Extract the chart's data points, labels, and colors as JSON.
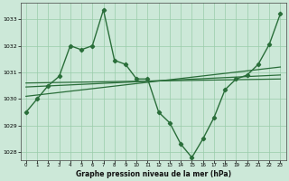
{
  "title": "Graphe pression niveau de la mer (hPa)",
  "background_color": "#cce8d8",
  "grid_color": "#99ccaa",
  "line_color": "#2a6e3a",
  "xlim": [
    -0.5,
    23.5
  ],
  "ylim": [
    1027.7,
    1033.6
  ],
  "yticks": [
    1028,
    1029,
    1030,
    1031,
    1032,
    1033
  ],
  "xticks": [
    0,
    1,
    2,
    3,
    4,
    5,
    6,
    7,
    8,
    9,
    10,
    11,
    12,
    13,
    14,
    15,
    16,
    17,
    18,
    19,
    20,
    21,
    22,
    23
  ],
  "main_series_x": [
    0,
    1,
    2,
    3,
    4,
    5,
    6,
    7,
    8,
    9,
    10,
    11,
    12,
    13,
    14,
    15,
    16,
    17,
    18,
    19,
    20,
    21,
    22,
    23
  ],
  "main_series_y": [
    1029.5,
    1030.0,
    1030.5,
    1030.85,
    1032.0,
    1031.85,
    1032.0,
    1033.35,
    1031.45,
    1031.3,
    1030.75,
    1030.75,
    1029.5,
    1029.1,
    1028.3,
    1027.8,
    1028.5,
    1029.3,
    1030.35,
    1030.75,
    1030.9,
    1031.3,
    1032.05,
    1033.2
  ],
  "trend1_x": [
    0,
    23
  ],
  "trend1_y": [
    1030.1,
    1031.2
  ],
  "trend2_x": [
    0,
    23
  ],
  "trend2_y": [
    1030.45,
    1030.9
  ],
  "trend3_x": [
    0,
    23
  ],
  "trend3_y": [
    1030.6,
    1030.75
  ]
}
